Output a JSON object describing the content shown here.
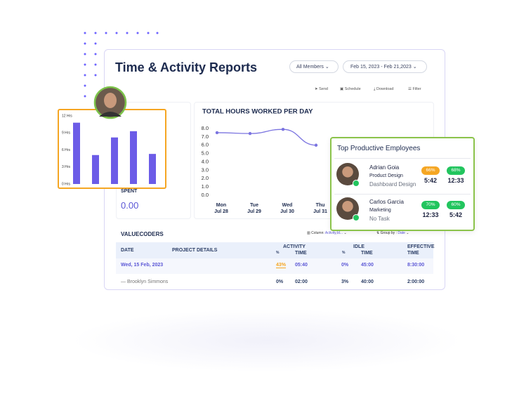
{
  "header": {
    "title": "Time & Activity Reports",
    "members_filter": "All Members",
    "date_filter": "Feb 15, 2023 - Feb 21,2023"
  },
  "toolbar": [
    "Send",
    "Schedule",
    "Download",
    "Filter"
  ],
  "summary": {
    "label": "SPENT",
    "value": "0.00"
  },
  "chart_data": [
    {
      "type": "line",
      "title": "TOTAL HOURS WORKED PER DAY",
      "categories": [
        "Mon",
        "Tue",
        "Wed",
        "Thu"
      ],
      "category_dates": [
        "Jul 28",
        "Jul 29",
        "Jul 30",
        "Jul 31"
      ],
      "series": [
        {
          "color": "#7b74e0",
          "values": [
            7.5,
            7.4,
            7.9,
            6.0
          ]
        }
      ],
      "ylim": [
        0,
        8
      ],
      "yticks": [
        {
          "value": 0,
          "label": "0.0"
        },
        {
          "value": 1,
          "label": "1.0"
        },
        {
          "value": 2,
          "label": "2.0"
        },
        {
          "value": 3,
          "label": "3.0"
        },
        {
          "value": 4,
          "label": "4.0"
        },
        {
          "value": 5,
          "label": "5.0"
        },
        {
          "value": 6,
          "label": "6.0"
        },
        {
          "value": 7,
          "label": "7.0"
        },
        {
          "value": 8,
          "label": "8.0"
        }
      ]
    },
    {
      "type": "bar",
      "categories": [
        null,
        null,
        null,
        null,
        null
      ],
      "values": [
        10.8,
        5.1,
        8.2,
        9.3,
        5.3
      ],
      "color": "#6c5ce7",
      "ylim": [
        0,
        12
      ],
      "yticks": [
        {
          "value": 0,
          "label": "0 Hrs"
        },
        {
          "value": 3,
          "label": "3 Hrs"
        },
        {
          "value": 6,
          "label": "6 Hrs"
        },
        {
          "value": 9,
          "label": "9 Hrs"
        },
        {
          "value": 12,
          "label": "12 Hrs"
        }
      ]
    }
  ],
  "table": {
    "title": "VALUECODERS",
    "column_label": "Column:",
    "column_value": "Activity,Id...",
    "group_label": "Group by :",
    "group_value": "Date",
    "headers": {
      "date": "DATE",
      "project": "PROJECT DETAILS",
      "activity": "ACTIVITY",
      "activity_pct": "%",
      "activity_time": "TIME",
      "idle": "IDLE",
      "idle_pct": "%",
      "idle_time": "TIME",
      "effective": "EFFECTIVE",
      "effective_time": "TIME"
    },
    "rows": [
      [
        "Wed, 15 Feb, 2023",
        "43%",
        "05:40",
        "0%",
        "45:00",
        "8:30:00"
      ],
      [
        "— Brooklyn Simmons",
        "0%",
        "02:00",
        "3%",
        "40:00",
        "2:00:00"
      ]
    ]
  },
  "employees": {
    "title": "Top Productive Employees",
    "items": [
      {
        "name": "Adrian Goia",
        "role": "Product Design",
        "task": "Dashboard Design",
        "pct1": "66%",
        "time1": "5:42",
        "pct2": "68%",
        "time2": "12:33"
      },
      {
        "name": "Carlos Garcia",
        "role": "Marketing",
        "task": "No Task",
        "pct1": "70%",
        "time1": "12:33",
        "pct2": "60%",
        "time2": "5:42"
      }
    ]
  }
}
